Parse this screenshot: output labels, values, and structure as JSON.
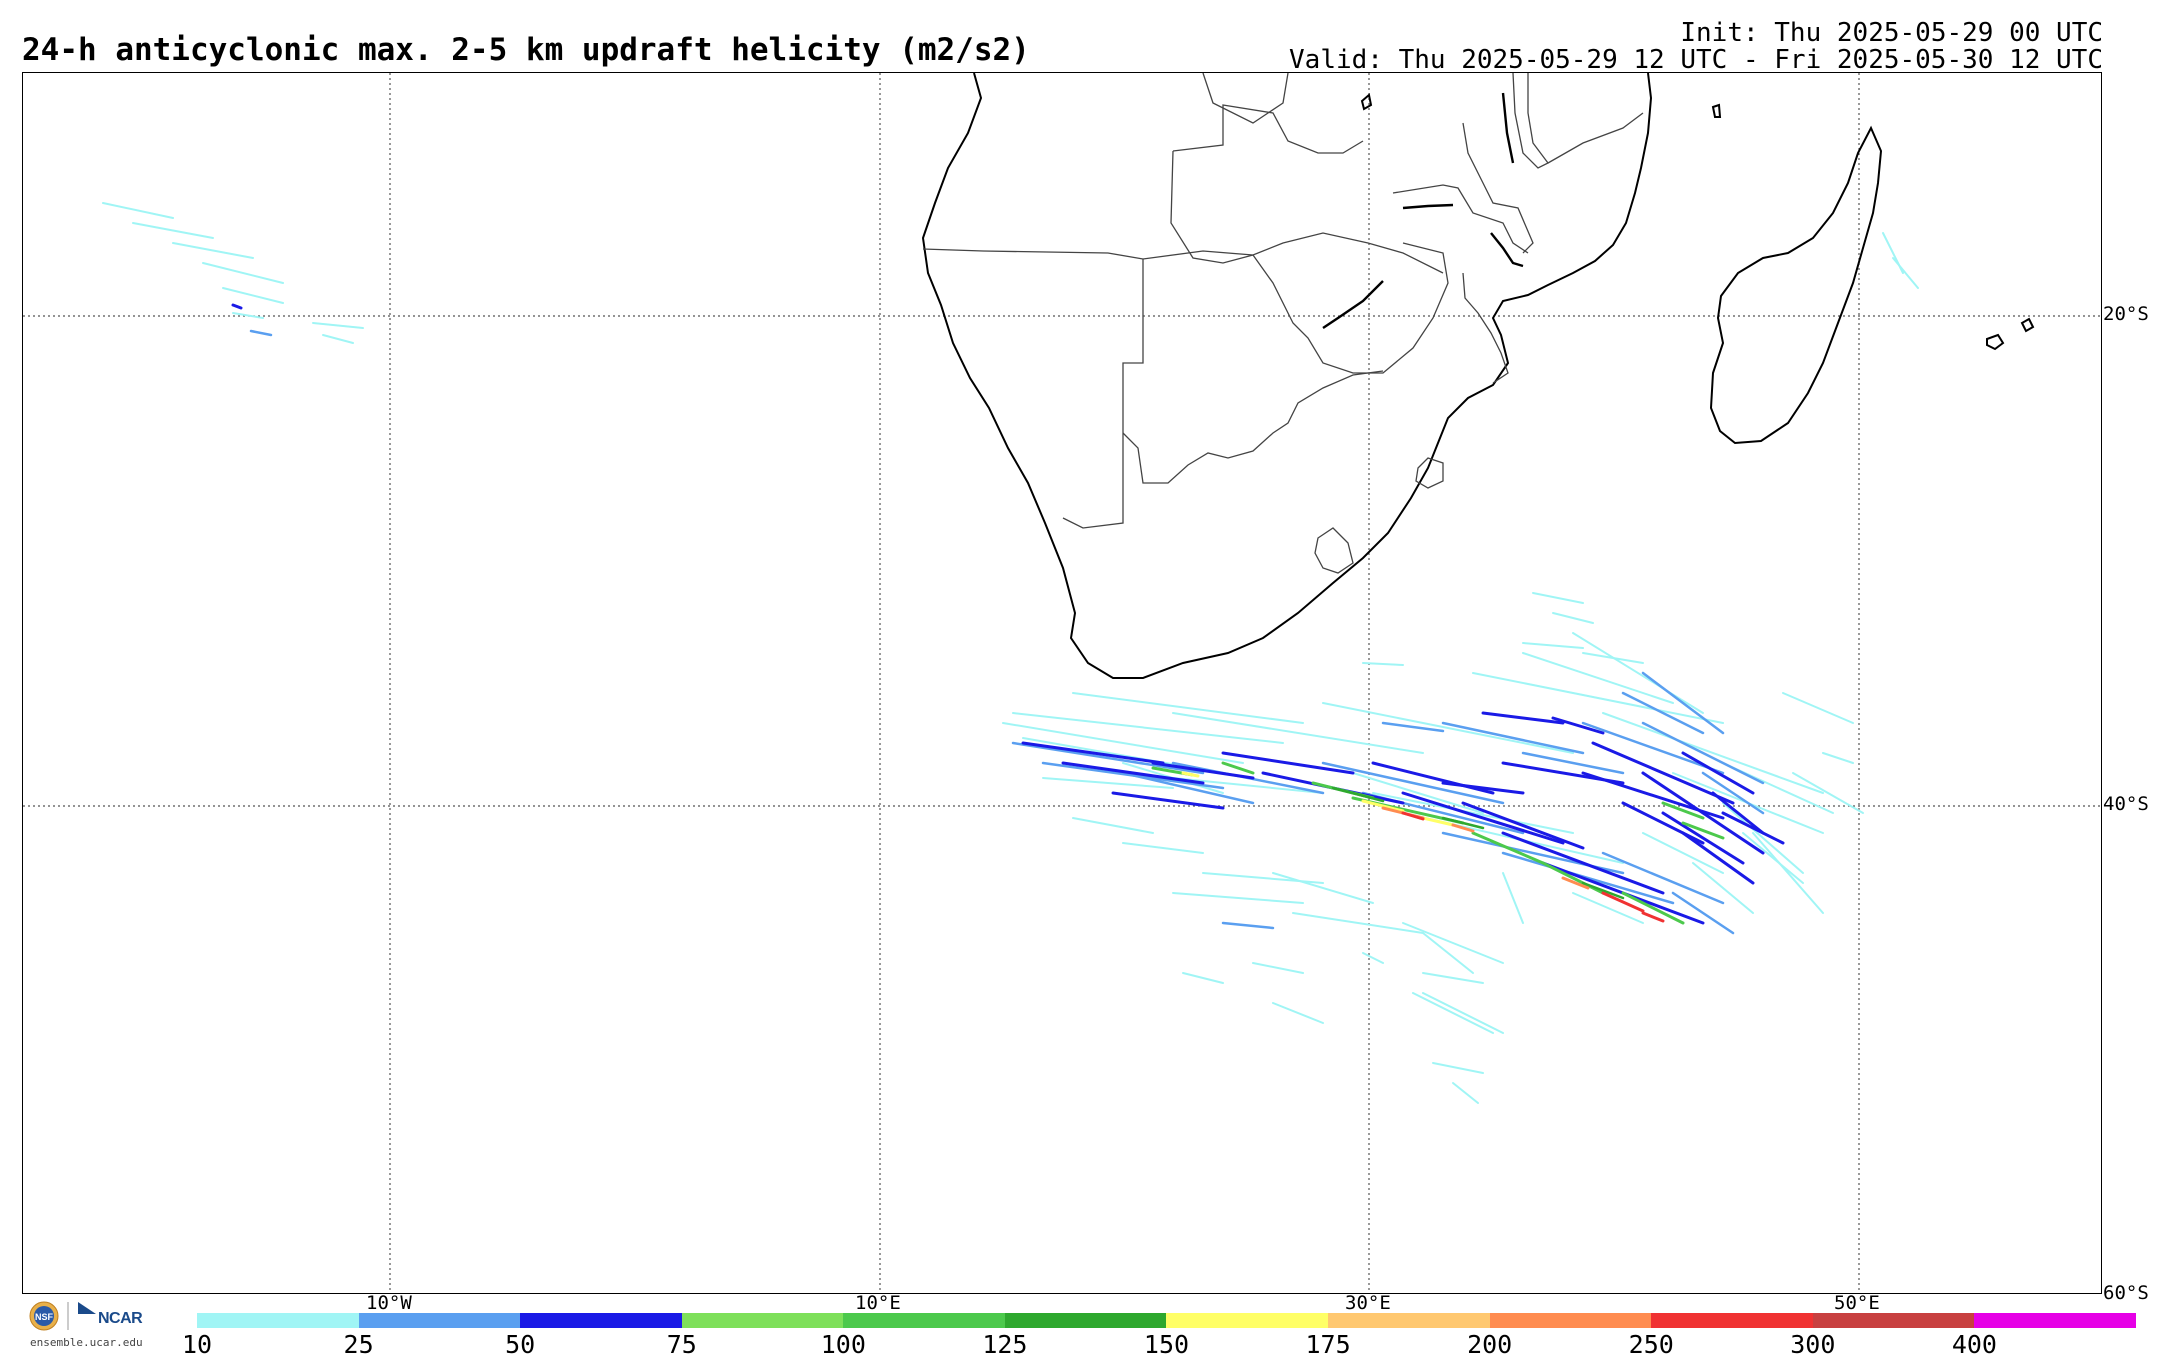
{
  "header": {
    "title": "24-h anticyclonic max. 2-5 km updraft helicity (m2/s2)",
    "init": "Init: Thu 2025-05-29 00 UTC",
    "valid": "Valid: Thu 2025-05-29 12 UTC - Fri 2025-05-30 12 UTC"
  },
  "map": {
    "lat_labels": [
      "20°S",
      "40°S",
      "60°S"
    ],
    "lon_labels": [
      "10°W",
      "10°E",
      "30°E",
      "50°E"
    ]
  },
  "logo": {
    "org": "NCAR",
    "site": "ensemble.ucar.edu"
  },
  "colorbar": {
    "labels": [
      "10",
      "25",
      "50",
      "75",
      "100",
      "125",
      "150",
      "175",
      "200",
      "250",
      "300",
      "400"
    ],
    "colors": [
      "#a0f5f5",
      "#5a9ff0",
      "#1a1ae6",
      "#7ee05a",
      "#4cc94c",
      "#2ea82e",
      "#ffff66",
      "#ffc870",
      "#ff8c50",
      "#f03232",
      "#c84040",
      "#e600e6"
    ]
  }
}
